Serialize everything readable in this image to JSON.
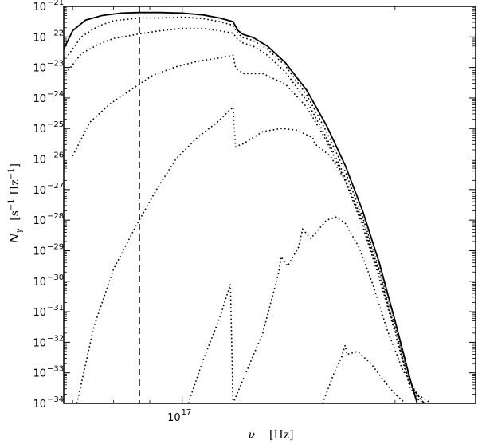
{
  "chart_data": {
    "type": "line",
    "title": "",
    "xlabel_symbol": "ν",
    "xlabel_unit": "[Hz]",
    "ylabel_symbol": "N",
    "ylabel_subscript": "γ",
    "ylabel_unit_open": "[s",
    "ylabel_unit_exp1": "−1",
    "ylabel_unit_mid": " Hz",
    "ylabel_unit_exp2": "−1",
    "ylabel_unit_close": "]",
    "x_scale": "log",
    "y_scale": "log",
    "xlim": [
      6.8e+16,
      2.6e+17
    ],
    "ylim_exp": [
      -34,
      -21
    ],
    "x_tick_labels": [
      {
        "value": 1e+17,
        "base": "10",
        "exp": "17"
      }
    ],
    "y_tick_labels": [
      {
        "base": "10",
        "exp": "−21",
        "value_exp": -21
      },
      {
        "base": "10",
        "exp": "−22",
        "value_exp": -22
      },
      {
        "base": "10",
        "exp": "−23",
        "value_exp": -23
      },
      {
        "base": "10",
        "exp": "−24",
        "value_exp": -24
      },
      {
        "base": "10",
        "exp": "−25",
        "value_exp": -25
      },
      {
        "base": "10",
        "exp": "−26",
        "value_exp": -26
      },
      {
        "base": "10",
        "exp": "−27",
        "value_exp": -27
      },
      {
        "base": "10",
        "exp": "−28",
        "value_exp": -28
      },
      {
        "base": "10",
        "exp": "−29",
        "value_exp": -29
      },
      {
        "base": "10",
        "exp": "−30",
        "value_exp": -30
      },
      {
        "base": "10",
        "exp": "−31",
        "value_exp": -31
      },
      {
        "base": "10",
        "exp": "−32",
        "value_exp": -32
      },
      {
        "base": "10",
        "exp": "−33",
        "value_exp": -33
      },
      {
        "base": "10",
        "exp": "−34",
        "value_exp": -34
      }
    ],
    "vline_x": 8.7e+16,
    "series": [
      {
        "style": "solid",
        "x": [
          6.8e+16,
          7e+16,
          7.3e+16,
          7.7e+16,
          8.2e+16,
          8.7e+16,
          9.3e+16,
          1e+17,
          1.07e+17,
          1.13e+17,
          1.18e+17,
          1.2e+17,
          1.22e+17,
          1.26e+17,
          1.32e+17,
          1.4e+17,
          1.5e+17,
          1.6e+17,
          1.7e+17,
          1.8e+17,
          1.9e+17,
          2e+17,
          2.1e+17,
          2.15e+17
        ],
        "y_exp": [
          -22.4,
          -21.8,
          -21.45,
          -21.3,
          -21.22,
          -21.2,
          -21.2,
          -21.22,
          -21.28,
          -21.38,
          -21.5,
          -21.8,
          -21.92,
          -22.02,
          -22.3,
          -22.85,
          -23.75,
          -24.9,
          -26.2,
          -27.7,
          -29.4,
          -31.3,
          -33.2,
          -34
        ]
      },
      {
        "style": "dotted",
        "x": [
          6.9e+16,
          7.2e+16,
          7.6e+16,
          8e+16,
          8.7e+16,
          9.3e+16,
          1e+17,
          1.07e+17,
          1.13e+17,
          1.18e+17,
          1.2e+17,
          1.22e+17,
          1.26e+17,
          1.32e+17,
          1.4e+17,
          1.5e+17,
          1.6e+17,
          1.7e+17,
          1.8e+17,
          1.9e+17,
          2e+17,
          2.1e+17,
          2.17e+17
        ],
        "y_exp": [
          -22.6,
          -22.0,
          -21.65,
          -21.47,
          -21.38,
          -21.38,
          -21.35,
          -21.4,
          -21.5,
          -21.62,
          -21.9,
          -22.02,
          -22.12,
          -22.4,
          -22.95,
          -23.9,
          -25.1,
          -26.4,
          -27.9,
          -29.6,
          -31.5,
          -33.3,
          -34
        ]
      },
      {
        "style": "dotted",
        "x": [
          6.9e+16,
          7.2e+16,
          7.6e+16,
          8e+16,
          8.7e+16,
          9.3e+16,
          1e+17,
          1.07e+17,
          1.13e+17,
          1.18e+17,
          1.2e+17,
          1.22e+17,
          1.26e+17,
          1.32e+17,
          1.4e+17,
          1.5e+17,
          1.6e+17,
          1.7e+17,
          1.8e+17,
          1.9e+17,
          2e+17,
          2.1e+17,
          2.2e+17
        ],
        "y_exp": [
          -23.1,
          -22.55,
          -22.25,
          -22.05,
          -21.9,
          -21.8,
          -21.72,
          -21.72,
          -21.8,
          -21.88,
          -22.1,
          -22.2,
          -22.3,
          -22.6,
          -23.15,
          -24.1,
          -25.3,
          -26.6,
          -28.1,
          -29.8,
          -31.6,
          -33.4,
          -34
        ]
      },
      {
        "style": "dotted",
        "x": [
          7e+16,
          7.4e+16,
          7.9e+16,
          8.5e+16,
          9.1e+16,
          9.8e+16,
          1.05e+17,
          1.12e+17,
          1.18e+17,
          1.19e+17,
          1.22e+17,
          1.3e+17,
          1.4e+17,
          1.5e+17,
          1.6e+17,
          1.7e+17,
          1.8e+17,
          1.9e+17,
          2e+17,
          2.1e+17,
          2.2e+17
        ],
        "y_exp": [
          -25.9,
          -24.8,
          -24.2,
          -23.7,
          -23.25,
          -22.98,
          -22.8,
          -22.7,
          -22.6,
          -23.0,
          -23.2,
          -23.2,
          -23.55,
          -24.3,
          -25.4,
          -26.7,
          -28.2,
          -29.9,
          -31.7,
          -33.5,
          -34
        ]
      },
      {
        "style": "dotted",
        "x": [
          7.1e+16,
          7.5e+16,
          8e+16,
          8.6e+16,
          9.2e+16,
          9.8e+16,
          1.05e+17,
          1.12e+17,
          1.18e+17,
          1.19e+17,
          1.22e+17,
          1.3e+17,
          1.38e+17,
          1.45e+17,
          1.53e+17,
          1.54e+17,
          1.62e+17,
          1.7e+17,
          1.8e+17,
          1.9e+17,
          2e+17,
          2.1e+17,
          2.2e+17
        ],
        "y_exp": [
          -34,
          -31.5,
          -29.6,
          -28.2,
          -27.0,
          -26.0,
          -25.3,
          -24.8,
          -24.3,
          -25.6,
          -25.5,
          -25.1,
          -25.0,
          -25.05,
          -25.3,
          -25.5,
          -25.9,
          -26.7,
          -28.0,
          -29.7,
          -31.6,
          -33.4,
          -34
        ]
      },
      {
        "style": "dotted",
        "x": [
          1.02e+17,
          1.07e+17,
          1.13e+17,
          1.17e+17,
          1.18e+17,
          1.3e+17,
          1.37e+17,
          1.38e+17,
          1.41e+17,
          1.46e+17,
          1.48e+17,
          1.52e+17,
          1.56e+17,
          1.6e+17,
          1.65e+17,
          1.7e+17,
          1.78e+17,
          1.86e+17,
          1.95e+17,
          2.05e+17,
          2.15e+17,
          2.25e+17
        ],
        "y_exp": [
          -34,
          -32.6,
          -31.2,
          -30.1,
          -34,
          -31.7,
          -29.7,
          -29.2,
          -29.5,
          -28.9,
          -28.3,
          -28.6,
          -28.3,
          -28.0,
          -27.9,
          -28.1,
          -28.9,
          -30.1,
          -31.6,
          -32.9,
          -33.7,
          -34
        ]
      },
      {
        "style": "dotted",
        "x": [
          1.58e+17,
          1.64e+17,
          1.68e+17,
          1.7e+17,
          1.71e+17,
          1.77e+17,
          1.85e+17,
          1.92e+17,
          2e+17,
          2.07e+17
        ],
        "y_exp": [
          -34,
          -33.0,
          -32.5,
          -32.1,
          -32.4,
          -32.3,
          -32.7,
          -33.2,
          -33.7,
          -34
        ]
      }
    ]
  }
}
